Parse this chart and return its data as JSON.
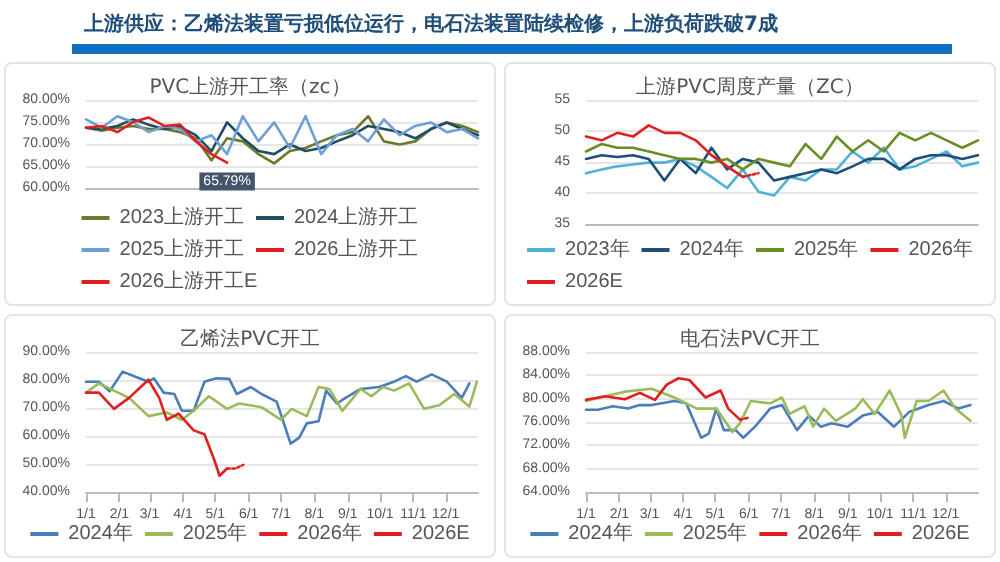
{
  "chart_data": [
    {
      "type": "line",
      "title": "PVC上游开工率（zc）",
      "annotations": [
        "上游供应：乙烯法装置亏损低位运行，电石法装置陆续检修，上游负荷跌破7成"
      ],
      "categories": [
        null,
        null,
        null,
        null,
        null,
        null,
        null,
        null,
        null,
        null,
        null,
        null,
        null,
        null,
        null,
        null,
        null,
        null,
        null,
        null,
        null,
        null,
        null,
        null,
        null,
        null
      ],
      "ylim": [
        60,
        80
      ],
      "yticks": [
        {
          "value": 60,
          "label": "60.00%"
        },
        {
          "value": 65,
          "label": "65.00%"
        },
        {
          "value": 70,
          "label": "70.00%"
        },
        {
          "value": 75,
          "label": "75.00%"
        },
        {
          "value": 80,
          "label": "80.00%"
        }
      ],
      "grid": "y",
      "legend": "bottom",
      "marker": "none",
      "series": [
        {
          "name": "2023上游开工",
          "color": "#6b7a2a",
          "values": [
            73.7,
            73,
            73.7,
            74.1,
            73.4,
            73.4,
            72.7,
            71.3,
            66.3,
            71.3,
            70.6,
            67.7,
            65.6,
            68.4,
            69.1,
            70.6,
            72,
            72.7,
            76.3,
            70.6,
            69.9,
            70.6,
            73.4,
            74.9,
            74.1,
            72.7
          ]
        },
        {
          "name": "2024上游开工",
          "color": "#1f4e5f",
          "values": [
            73.7,
            73.4,
            74.1,
            75.6,
            74.4,
            73.4,
            73.9,
            72,
            68.4,
            74.9,
            71.3,
            68.4,
            67.7,
            69.9,
            68.4,
            69.1,
            70.6,
            72,
            74.1,
            73.4,
            72.7,
            71.3,
            73.4,
            74.9,
            73.4,
            72
          ]
        },
        {
          "name": "2025上游开工",
          "color": "#6f9fd8",
          "values": [
            75.6,
            73.7,
            76.3,
            75,
            72.7,
            74.1,
            73.4,
            70.6,
            72,
            67.7,
            76.3,
            70.6,
            74.9,
            69.1,
            76.3,
            67.7,
            72,
            73.4,
            70.6,
            75.6,
            72,
            74.1,
            74.9,
            72.7,
            73.4,
            71.3
          ]
        },
        {
          "name": "2026上游开工",
          "color": "#e02020",
          "values": [
            73.7,
            74.1,
            72.7,
            75,
            76,
            74.1,
            74.4,
            70.6,
            67.7,
            65.79,
            null,
            null,
            null,
            null,
            null,
            null,
            null,
            null,
            null,
            null,
            null,
            null,
            null,
            null,
            null,
            null
          ],
          "value_labels": [
            null,
            null,
            null,
            null,
            null,
            null,
            null,
            null,
            null,
            "65.79%",
            null,
            null,
            null,
            null,
            null,
            null,
            null,
            null,
            null,
            null,
            null,
            null,
            null,
            null,
            null,
            null
          ]
        },
        {
          "name": "2026上游开工E",
          "color": "#e02020",
          "line_style": "dotted",
          "values": [
            null,
            null,
            null,
            null,
            null,
            null,
            null,
            null,
            null,
            null,
            null,
            null,
            null,
            null,
            null,
            null,
            null,
            null,
            null,
            null,
            null,
            null,
            null,
            null,
            null,
            null
          ]
        }
      ]
    },
    {
      "type": "line",
      "title": "上游PVC周度产量（ZC）",
      "categories": [
        null,
        null,
        null,
        null,
        null,
        null,
        null,
        null,
        null,
        null,
        null,
        null,
        null,
        null,
        null,
        null,
        null,
        null,
        null,
        null,
        null,
        null,
        null,
        null,
        null,
        null
      ],
      "ylim": [
        35,
        55
      ],
      "yticks": [
        35,
        40,
        45,
        50,
        55
      ],
      "grid": "y",
      "legend": "bottom",
      "marker": "none",
      "series": [
        {
          "name": "2023年",
          "color": "#4fb3d9",
          "values": [
            43.2,
            43.8,
            44.3,
            44.6,
            44.9,
            44.9,
            45.5,
            44.3,
            42.6,
            40.8,
            43.8,
            40.2,
            39.6,
            42.6,
            42,
            43.8,
            43.8,
            46.7,
            44.9,
            47.3,
            43.8,
            44.3,
            45.5,
            46.7,
            44.3,
            44.9
          ]
        },
        {
          "name": "2024年",
          "color": "#1f4e79",
          "values": [
            45.5,
            46.1,
            45.8,
            46.1,
            45.5,
            42,
            45.5,
            43.2,
            47.3,
            43.8,
            45.5,
            44.9,
            42,
            42.6,
            43.2,
            43.8,
            43.2,
            44.3,
            45.5,
            45.5,
            43.8,
            45.5,
            46.1,
            46.1,
            45.5,
            46.1
          ]
        },
        {
          "name": "2025年",
          "color": "#6b8e23",
          "values": [
            46.7,
            47.9,
            47.3,
            47.3,
            46.7,
            46.1,
            45.5,
            45.5,
            44.9,
            45.5,
            43.8,
            45.5,
            44.9,
            44.3,
            47.9,
            45.5,
            49.1,
            46.7,
            48.5,
            46.7,
            49.7,
            48.5,
            49.7,
            48.5,
            47.3,
            48.5
          ]
        },
        {
          "name": "2026年",
          "color": "#e02020",
          "values": [
            49.1,
            48.5,
            49.7,
            49.1,
            50.9,
            49.7,
            49.7,
            48.5,
            46.1,
            44.3,
            42.6,
            null,
            null,
            null,
            null,
            null,
            null,
            null,
            null,
            null,
            null,
            null,
            null,
            null,
            null,
            null
          ]
        },
        {
          "name": "2026E",
          "color": "#e02020",
          "line_style": "dotted",
          "values": [
            null,
            null,
            null,
            null,
            null,
            null,
            null,
            null,
            null,
            null,
            42.6,
            43.2,
            null,
            null,
            null,
            null,
            null,
            null,
            null,
            null,
            null,
            null,
            null,
            null,
            null,
            null
          ]
        }
      ]
    },
    {
      "type": "line",
      "title": "乙烯法PVC开工",
      "xlim": [
        "--01-01",
        "--12-31"
      ],
      "xticks": [
        {
          "value": "--01-01",
          "label": "1/1"
        },
        {
          "value": "--02-01",
          "label": "2/1"
        },
        {
          "value": "--03-01",
          "label": "3/1"
        },
        {
          "value": "--04-01",
          "label": "4/1"
        },
        {
          "value": "--05-01",
          "label": "5/1"
        },
        {
          "value": "--06-01",
          "label": "6/1"
        },
        {
          "value": "--07-01",
          "label": "7/1"
        },
        {
          "value": "--08-01",
          "label": "8/1"
        },
        {
          "value": "--09-01",
          "label": "9/1"
        },
        {
          "value": "--10-01",
          "label": "10/1"
        },
        {
          "value": "--11-01",
          "label": "11/1"
        },
        {
          "value": "--12-01",
          "label": "12/1"
        }
      ],
      "ylim": [
        40,
        90
      ],
      "yticks": [
        {
          "value": 40,
          "label": "40.00%"
        },
        {
          "value": 50,
          "label": "50.00%"
        },
        {
          "value": 60,
          "label": "60.00%"
        },
        {
          "value": 70,
          "label": "70.00%"
        },
        {
          "value": 80,
          "label": "80.00%"
        },
        {
          "value": 90,
          "label": "90.00%"
        }
      ],
      "grid": "y",
      "legend": "bottom",
      "marker": "none",
      "series": [
        {
          "name": "2024年",
          "color": "#4a7ebb",
          "x": [
            "--01-01",
            "--01-13",
            "--01-23",
            "--02-04",
            "--02-17",
            "--02-28",
            "--03-05",
            "--03-14",
            "--03-24",
            "--03-31",
            "--04-11",
            "--04-21",
            "--05-02",
            "--05-14",
            "--05-21",
            "--06-03",
            "--06-13",
            "--06-27",
            "--07-10",
            "--07-18",
            "--07-25",
            "--08-05",
            "--08-12",
            "--08-22",
            "--08-30",
            "--09-13",
            "--09-30",
            "--10-14",
            "--10-25",
            "--11-04",
            "--11-18",
            "--12-02",
            "--12-16",
            "--12-23"
          ],
          "values": [
            79.4,
            79.4,
            76,
            83,
            81,
            79.4,
            80.6,
            75.5,
            75,
            69,
            69,
            79.4,
            80.6,
            80.4,
            75,
            77.5,
            75,
            72.3,
            57.3,
            59.4,
            64.5,
            65.3,
            76.2,
            71.6,
            73.6,
            76.8,
            77.5,
            79.4,
            81.4,
            79.4,
            82,
            79.4,
            73.6,
            78.8
          ]
        },
        {
          "name": "2025年",
          "color": "#9bbb59",
          "x": [
            "--01-01",
            "--01-13",
            "--01-27",
            "--02-10",
            "--02-28",
            "--03-17",
            "--03-31",
            "--04-11",
            "--04-25",
            "--05-12",
            "--05-23",
            "--06-13",
            "--07-01",
            "--07-11",
            "--07-25",
            "--08-05",
            "--08-15",
            "--08-27",
            "--09-13",
            "--09-23",
            "--10-04",
            "--10-14",
            "--10-28",
            "--11-11",
            "--11-25",
            "--12-09",
            "--12-23",
            "--12-30"
          ],
          "values": [
            75.5,
            78.8,
            76.2,
            73.6,
            67.1,
            68.4,
            65.8,
            69,
            74.2,
            69.7,
            71.6,
            70.3,
            65.8,
            69.7,
            67.1,
            77.5,
            76.8,
            69,
            76.8,
            74.2,
            77.5,
            76.2,
            78.8,
            69.7,
            71,
            75,
            70.5,
            79.4
          ]
        },
        {
          "name": "2026年",
          "color": "#e02020",
          "x": [
            "--01-01",
            "--01-13",
            "--01-27",
            "--02-10",
            "--02-28",
            "--03-10",
            "--03-17",
            "--03-28",
            "--04-11",
            "--04-21",
            "--04-30",
            "--05-05",
            "--05-12"
          ],
          "values": [
            75.5,
            75.5,
            69.7,
            73.6,
            80.1,
            73.6,
            65.8,
            68,
            62,
            60.6,
            51.6,
            45.8,
            48.4
          ]
        },
        {
          "name": "2026E",
          "color": "#e02020",
          "line_style": "dotted",
          "x": [
            "--05-12",
            "--05-20",
            "--05-27"
          ],
          "values": [
            48.4,
            48.4,
            49.7
          ]
        }
      ]
    },
    {
      "type": "line",
      "title": "电石法PVC开工",
      "xlim": [
        "--01-01",
        "--12-31"
      ],
      "xticks": [
        {
          "value": "--01-01",
          "label": "1/1"
        },
        {
          "value": "--02-01",
          "label": "2/1"
        },
        {
          "value": "--03-01",
          "label": "3/1"
        },
        {
          "value": "--04-01",
          "label": "4/1"
        },
        {
          "value": "--05-01",
          "label": "5/1"
        },
        {
          "value": "--06-01",
          "label": "6/1"
        },
        {
          "value": "--07-01",
          "label": "7/1"
        },
        {
          "value": "--08-01",
          "label": "8/1"
        },
        {
          "value": "--09-01",
          "label": "9/1"
        },
        {
          "value": "--10-01",
          "label": "10/1"
        },
        {
          "value": "--11-01",
          "label": "11/1"
        },
        {
          "value": "--12-01",
          "label": "12/1"
        }
      ],
      "ylim": [
        64,
        88
      ],
      "yticks": [
        {
          "value": 64,
          "label": "64.00%"
        },
        {
          "value": 68,
          "label": "68.00%"
        },
        {
          "value": 72,
          "label": "72.00%"
        },
        {
          "value": 76,
          "label": "76.00%"
        },
        {
          "value": 80,
          "label": "80.00%"
        },
        {
          "value": 84,
          "label": "84.00%"
        },
        {
          "value": 88,
          "label": "88.00%"
        }
      ],
      "grid": "y",
      "legend": "bottom",
      "marker": "none",
      "series": [
        {
          "name": "2024年",
          "color": "#4a7ebb",
          "x": [
            "--01-01",
            "--01-12",
            "--01-26",
            "--02-09",
            "--02-20",
            "--03-03",
            "--03-24",
            "--04-04",
            "--04-18",
            "--04-25",
            "--05-02",
            "--05-09",
            "--05-20",
            "--05-27",
            "--06-07",
            "--06-21",
            "--07-02",
            "--07-16",
            "--07-27",
            "--08-07",
            "--08-17",
            "--09-01",
            "--09-15",
            "--09-29",
            "--10-14",
            "--10-28",
            "--11-15",
            "--11-29",
            "--12-13",
            "--12-24"
          ],
          "values": [
            78.1,
            78.1,
            78.7,
            78.3,
            78.9,
            78.9,
            79.6,
            79.2,
            73.3,
            74,
            78.3,
            74.6,
            74.6,
            73.3,
            75.2,
            78.3,
            78.9,
            74.6,
            77.1,
            75.2,
            75.8,
            75.2,
            77.1,
            77.7,
            75.2,
            77.7,
            78.9,
            79.6,
            78.3,
            78.9
          ]
        },
        {
          "name": "2025年",
          "color": "#9bbb59",
          "x": [
            "--01-01",
            "--01-19",
            "--02-06",
            "--03-03",
            "--03-24",
            "--04-14",
            "--05-02",
            "--05-17",
            "--05-24",
            "--06-03",
            "--06-21",
            "--07-02",
            "--07-09",
            "--07-23",
            "--07-31",
            "--08-10",
            "--08-21",
            "--09-08",
            "--09-15",
            "--09-26",
            "--10-10",
            "--10-21",
            "--10-24",
            "--11-04",
            "--11-15",
            "--11-29",
            "--12-10",
            "--12-24"
          ],
          "values": [
            79.6,
            80.4,
            81.2,
            81.7,
            80.2,
            78.3,
            78.3,
            74.3,
            75.8,
            79.6,
            79.2,
            80.2,
            77.4,
            78.7,
            75.2,
            78.3,
            76.2,
            78.3,
            79.9,
            77.4,
            81.4,
            77.1,
            73.3,
            79.6,
            79.6,
            81.4,
            78.3,
            76.2
          ]
        },
        {
          "name": "2026年",
          "color": "#e02020",
          "x": [
            "--01-01",
            "--01-19",
            "--02-06",
            "--02-20",
            "--03-06",
            "--03-17",
            "--03-28",
            "--04-07",
            "--04-22",
            "--05-06",
            "--05-13",
            "--05-24"
          ],
          "values": [
            79.8,
            80.4,
            79.9,
            81,
            79.8,
            82.4,
            83.5,
            83.2,
            80.2,
            81.4,
            78.3,
            76.4
          ]
        },
        {
          "name": "2026E",
          "color": "#e02020",
          "line_style": "dotted",
          "x": [
            "--05-24",
            "--05-31"
          ],
          "values": [
            76.4,
            76.7
          ]
        }
      ]
    }
  ]
}
